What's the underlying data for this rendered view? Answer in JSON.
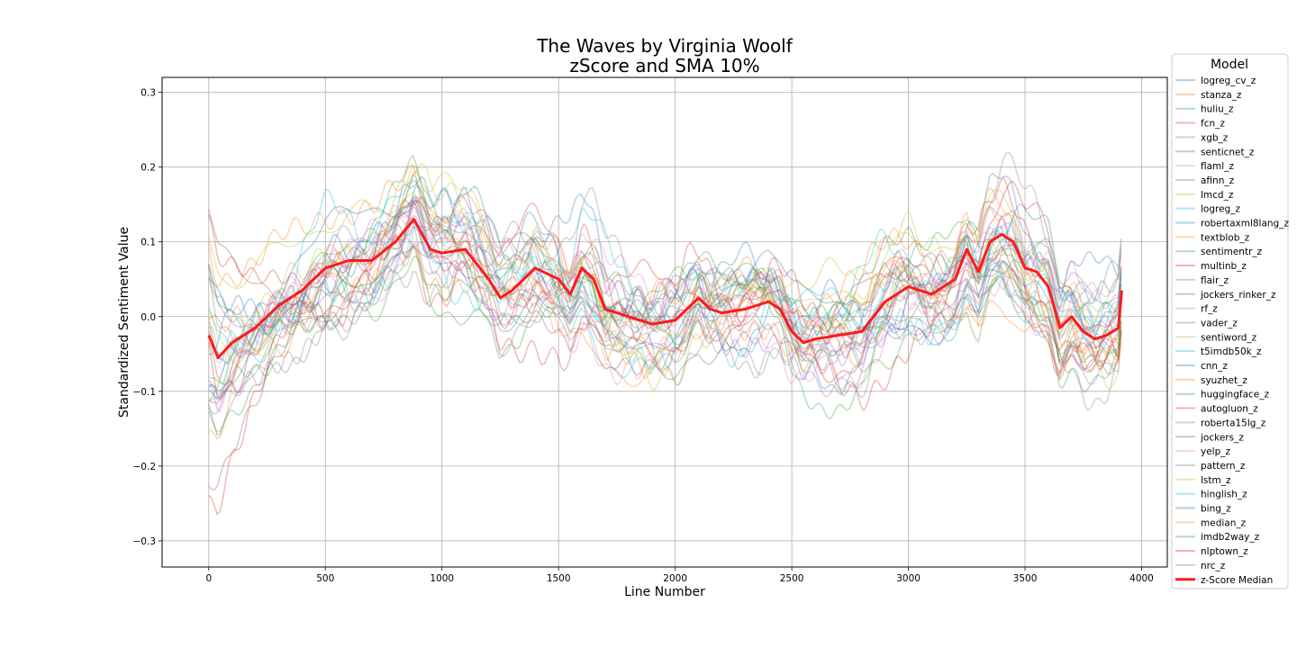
{
  "chart_data": {
    "type": "line",
    "title_line1": "The Waves by Virginia Woolf",
    "title_line2": "zScore and SMA 10%",
    "xlabel": "Line Number",
    "ylabel": "Standardized Sentiment Value",
    "xlim": [
      -200,
      4110
    ],
    "ylim": [
      -0.335,
      0.32
    ],
    "x_ticks": [
      0,
      500,
      1000,
      1500,
      2000,
      2500,
      3000,
      3500,
      4000
    ],
    "y_ticks": [
      -0.3,
      -0.2,
      -0.1,
      0.0,
      0.1,
      0.2,
      0.3
    ],
    "x_tick_labels": [
      "0",
      "500",
      "1000",
      "1500",
      "2000",
      "2500",
      "3000",
      "3500",
      "4000"
    ],
    "y_tick_labels": [
      "−0.3",
      "−0.2",
      "−0.1",
      "0.0",
      "0.1",
      "0.2",
      "0.3"
    ],
    "grid": true,
    "legend_title": "Model",
    "legend_position": "outside-right",
    "series": [
      {
        "name": "logreg_cv_z",
        "color": "#1f77b4"
      },
      {
        "name": "stanza_z",
        "color": "#ff7f0e"
      },
      {
        "name": "huliu_z",
        "color": "#2ca02c"
      },
      {
        "name": "fcn_z",
        "color": "#d62728"
      },
      {
        "name": "xgb_z",
        "color": "#9467bd"
      },
      {
        "name": "senticnet_z",
        "color": "#8c564b"
      },
      {
        "name": "flaml_z",
        "color": "#e377c2"
      },
      {
        "name": "afinn_z",
        "color": "#7f7f7f"
      },
      {
        "name": "lmcd_z",
        "color": "#bcbd22"
      },
      {
        "name": "logreg_z",
        "color": "#17becf"
      },
      {
        "name": "robertaxml8lang_z",
        "color": "#1f77b4"
      },
      {
        "name": "textblob_z",
        "color": "#ff7f0e"
      },
      {
        "name": "sentimentr_z",
        "color": "#2ca02c"
      },
      {
        "name": "multinb_z",
        "color": "#d62728"
      },
      {
        "name": "flair_z",
        "color": "#9467bd"
      },
      {
        "name": "jockers_rinker_z",
        "color": "#8c564b"
      },
      {
        "name": "rf_z",
        "color": "#e377c2"
      },
      {
        "name": "vader_z",
        "color": "#7f7f7f"
      },
      {
        "name": "sentiword_z",
        "color": "#bcbd22"
      },
      {
        "name": "t5imdb50k_z",
        "color": "#17becf"
      },
      {
        "name": "cnn_z",
        "color": "#1f77b4"
      },
      {
        "name": "syuzhet_z",
        "color": "#ff7f0e"
      },
      {
        "name": "huggingface_z",
        "color": "#2ca02c"
      },
      {
        "name": "autogluon_z",
        "color": "#d62728"
      },
      {
        "name": "roberta15lg_z",
        "color": "#9467bd"
      },
      {
        "name": "jockers_z",
        "color": "#8c564b"
      },
      {
        "name": "yelp_z",
        "color": "#e377c2"
      },
      {
        "name": "pattern_z",
        "color": "#7f7f7f"
      },
      {
        "name": "lstm_z",
        "color": "#bcbd22"
      },
      {
        "name": "hinglish_z",
        "color": "#17becf"
      },
      {
        "name": "bing_z",
        "color": "#1f77b4"
      },
      {
        "name": "median_z",
        "color": "#ff7f0e"
      },
      {
        "name": "imdb2way_z",
        "color": "#2ca02c"
      },
      {
        "name": "nlptown_z",
        "color": "#d62728"
      },
      {
        "name": "nrc_z",
        "color": "#9467bd"
      }
    ],
    "median_series": {
      "name": "z-Score Median",
      "color": "#ff1a1a",
      "x": [
        0,
        40,
        100,
        200,
        300,
        400,
        500,
        600,
        700,
        800,
        880,
        950,
        1000,
        1100,
        1200,
        1250,
        1300,
        1400,
        1500,
        1550,
        1600,
        1650,
        1700,
        1800,
        1900,
        2000,
        2100,
        2150,
        2200,
        2300,
        2400,
        2450,
        2500,
        2550,
        2600,
        2700,
        2800,
        2900,
        3000,
        3100,
        3200,
        3250,
        3300,
        3350,
        3400,
        3450,
        3500,
        3550,
        3600,
        3650,
        3700,
        3750,
        3800,
        3850,
        3900,
        3915
      ],
      "y": [
        -0.025,
        -0.055,
        -0.035,
        -0.015,
        0.015,
        0.035,
        0.065,
        0.075,
        0.075,
        0.1,
        0.13,
        0.09,
        0.085,
        0.09,
        0.05,
        0.025,
        0.035,
        0.065,
        0.05,
        0.03,
        0.065,
        0.05,
        0.01,
        0.0,
        -0.01,
        -0.005,
        0.025,
        0.01,
        0.005,
        0.01,
        0.02,
        0.01,
        -0.02,
        -0.035,
        -0.03,
        -0.025,
        -0.02,
        0.02,
        0.04,
        0.03,
        0.05,
        0.09,
        0.06,
        0.1,
        0.11,
        0.1,
        0.065,
        0.06,
        0.04,
        -0.015,
        0.0,
        -0.02,
        -0.03,
        -0.025,
        -0.015,
        0.035
      ]
    }
  }
}
